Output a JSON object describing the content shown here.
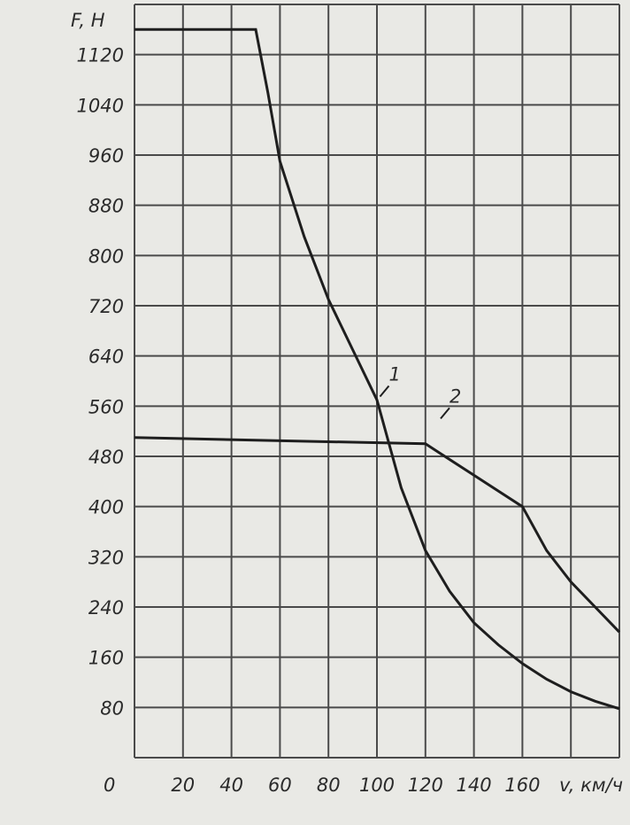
{
  "chart_data": {
    "type": "line",
    "ylabel": "F, Н",
    "xlabel": "v, км/ч",
    "xlim": [
      0,
      200
    ],
    "ylim": [
      0,
      1200
    ],
    "x_ticks": [
      0,
      20,
      40,
      60,
      80,
      100,
      120,
      140,
      160
    ],
    "y_ticks": [
      80,
      160,
      240,
      320,
      400,
      480,
      560,
      640,
      720,
      800,
      880,
      960,
      1040,
      1120
    ],
    "grid": true,
    "colors": {
      "line": "#1e1e1e",
      "grid": "#4a4a4a",
      "paper": "#e9e9e5"
    },
    "series": [
      {
        "name": "1",
        "label_at": [
          102,
          595
        ],
        "points": [
          [
            0,
            1160
          ],
          [
            50,
            1160
          ],
          [
            55,
            1060
          ],
          [
            60,
            950
          ],
          [
            70,
            830
          ],
          [
            80,
            730
          ],
          [
            90,
            650
          ],
          [
            100,
            570
          ],
          [
            110,
            430
          ],
          [
            120,
            330
          ],
          [
            130,
            265
          ],
          [
            140,
            215
          ],
          [
            150,
            180
          ],
          [
            160,
            150
          ],
          [
            170,
            125
          ],
          [
            180,
            105
          ],
          [
            190,
            90
          ],
          [
            200,
            78
          ]
        ]
      },
      {
        "name": "2",
        "label_at": [
          127,
          560
        ],
        "points": [
          [
            0,
            510
          ],
          [
            120,
            500
          ],
          [
            140,
            450
          ],
          [
            160,
            400
          ],
          [
            170,
            330
          ],
          [
            180,
            280
          ],
          [
            190,
            240
          ],
          [
            200,
            200
          ]
        ]
      }
    ]
  }
}
